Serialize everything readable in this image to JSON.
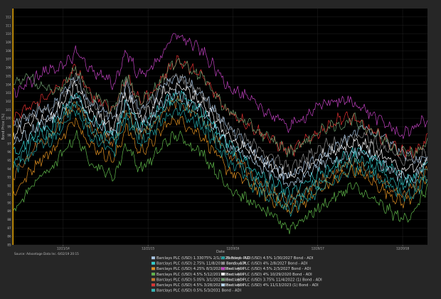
{
  "chart_data": {
    "type": "line",
    "title": "",
    "xlabel": "Date",
    "ylabel": "Bond Price (%)",
    "ylim": [
      85,
      113
    ],
    "y_ticks": [
      85,
      86,
      87,
      88,
      89,
      90,
      91,
      92,
      93,
      94,
      95,
      96,
      97,
      98,
      99,
      100,
      101,
      102,
      103,
      104,
      105,
      106,
      107,
      108,
      109,
      110,
      111,
      112
    ],
    "x_tick_labels": [
      "12/21/14",
      "12/21/15",
      "12/20/16",
      "12/20/17",
      "12/20/18"
    ],
    "grid": true,
    "legend_position": "bottom",
    "source_note": "Source: Advantage Data Inc. 6/02/19 20:15",
    "colors": {
      "background": "#262626",
      "plot_background": "#000000",
      "grid": "#2a2a2a",
      "accent_border": "#e0a000"
    },
    "series": [
      {
        "name": "Barclays PLC (USD) 1.33075% 2/1/2028 Bond - ADI",
        "color": "#a8c8e8",
        "values": [
          99,
          100,
          101,
          101,
          103,
          105,
          102,
          101,
          100,
          104,
          101,
          102,
          104,
          105,
          104,
          103,
          101,
          99,
          98,
          96,
          95,
          94,
          93,
          94,
          95,
          96,
          97,
          98,
          99,
          98,
          97,
          96,
          95,
          95.5
        ]
      },
      {
        "name": "Barclays PLC (USD) 2.75% 11/8/2017 Bond - ADI",
        "color": "#2fd0d0",
        "values": [
          96,
          97,
          99,
          99,
          101,
          103,
          100,
          99,
          98,
          102,
          99,
          100,
          102,
          103,
          102,
          101,
          99,
          97,
          96,
          94,
          93,
          92,
          91,
          92,
          93,
          94,
          95,
          96,
          96,
          95,
          94,
          93,
          93,
          95
        ]
      },
      {
        "name": "Barclays PLC (USD) 4.25% 8/3/2028 Bond - ADI",
        "color": "#e09020",
        "values": [
          91,
          93,
          95,
          96,
          98,
          100,
          97,
          96,
          95,
          99,
          96,
          97,
          99,
          100,
          99,
          98,
          96,
          94,
          93,
          92,
          91,
          90,
          89,
          90,
          91,
          92,
          93,
          94,
          93,
          92,
          91,
          90,
          91,
          93
        ]
      },
      {
        "name": "Barclays PLC (USD) 4.5% 5/12/2017 Bond - ADI",
        "color": "#5fb84a",
        "values": [
          89,
          91,
          93,
          94,
          96,
          98,
          95,
          94,
          93,
          97,
          94,
          95,
          97,
          98,
          97,
          96,
          94,
          92,
          91,
          90,
          89,
          88,
          87,
          88,
          89,
          90,
          91,
          92,
          91,
          90,
          89,
          88,
          89,
          92
        ]
      },
      {
        "name": "Barclays PLC (USD) 5.05% 3/1/2021 Bond - ADI",
        "color": "#c8782c",
        "values": [
          93,
          95,
          97,
          98,
          100,
          102,
          99,
          98,
          97,
          101,
          98,
          99,
          101,
          102,
          101,
          100,
          98,
          96,
          95,
          93,
          92,
          91,
          90,
          91,
          92,
          93,
          94,
          95,
          94,
          93,
          92,
          91,
          92,
          94
        ]
      },
      {
        "name": "Barclays PLC (USD) 4.5% 3/28/2027 Bond - ADI",
        "color": "#e03030",
        "values": [
          100,
          101,
          102,
          103,
          104,
          106,
          103,
          102,
          101,
          105,
          102,
          103,
          105,
          107,
          106,
          105,
          103,
          101,
          100,
          99,
          98,
          97,
          96,
          97,
          98,
          99,
          100,
          100,
          99,
          98,
          97,
          96,
          96,
          97.5
        ]
      },
      {
        "name": "Barclays PLC (USD) 0.5% 5/3/2031 Bond - ADI",
        "color": "#30b8b8",
        "values": [
          95,
          96,
          98,
          98,
          100,
          102,
          99,
          98,
          97,
          101,
          98,
          99,
          101,
          102,
          101,
          100,
          98,
          96,
          95,
          93,
          92,
          91,
          90,
          91,
          92,
          93,
          94,
          95,
          95,
          94,
          93,
          92,
          92,
          94
        ]
      },
      {
        "name": "Barclays PLC (USD) 4.5% 1/30/2027 Bond - ADI",
        "color": "#20a0a0",
        "values": [
          94,
          95,
          97,
          97,
          99,
          101,
          98,
          97,
          96,
          100,
          97,
          98,
          100,
          101,
          100,
          99,
          97,
          95,
          94,
          92,
          91,
          90,
          89,
          90,
          91,
          92,
          93,
          94,
          94,
          93,
          92,
          91,
          91,
          93
        ]
      },
      {
        "name": "Barclays PLC (USD) 4% 2/8/2027 Bond - ADI",
        "color": "#909090",
        "values": [
          99,
          100,
          101,
          101,
          103,
          105,
          102,
          101,
          100,
          104,
          101,
          102,
          104,
          105,
          104,
          103,
          101,
          99,
          98,
          97,
          96,
          95,
          94,
          95,
          96,
          97,
          97,
          98,
          98,
          97,
          96,
          95,
          95,
          96
        ]
      },
      {
        "name": "Barclays PLC (USD) 4.5% 2/3/2027 Bond - ADI",
        "color": "#c040c0",
        "values": [
          103,
          104,
          105,
          106,
          106,
          108,
          106,
          105,
          104,
          108,
          105,
          106,
          108,
          110,
          109,
          108,
          106,
          104,
          103,
          102,
          101,
          100,
          99,
          100,
          101,
          102,
          102,
          102,
          101,
          100,
          99,
          98,
          99,
          100
        ]
      },
      {
        "name": "Barclays PLC (USD) 4% 10/29/2020 Bond - ADI",
        "color": "#ffffff",
        "values": [
          98,
          99,
          100,
          100,
          102,
          104,
          101,
          100,
          99,
          103,
          100,
          101,
          103,
          104,
          103,
          102,
          100,
          98,
          97,
          96,
          95,
          94,
          93,
          94,
          95,
          96,
          96,
          97,
          97,
          96,
          95,
          94,
          94,
          95
        ]
      },
      {
        "name": "Barclays PLC (USD) 3.75% 11/4/2022 (1) Bond - ADI",
        "color": "#70a070",
        "values": [
          104,
          105,
          104,
          103,
          104,
          106,
          103,
          102,
          101,
          105,
          102,
          103,
          105,
          107,
          106,
          105,
          103,
          101,
          100,
          99,
          98,
          97,
          96,
          97,
          98,
          99,
          99,
          100,
          99,
          98,
          97,
          96,
          96,
          97
        ]
      },
      {
        "name": "Barclays PLC (USD) 4% 11/13/2023 (1) Bond - ADI",
        "color": "#b8d8f0",
        "values": [
          97,
          98,
          99,
          100,
          101,
          103,
          100,
          99,
          98,
          102,
          99,
          100,
          102,
          103,
          102,
          101,
          99,
          97,
          96,
          95,
          94,
          93,
          92,
          93,
          94,
          95,
          95,
          96,
          96,
          95,
          94,
          93,
          93,
          95
        ]
      }
    ]
  }
}
